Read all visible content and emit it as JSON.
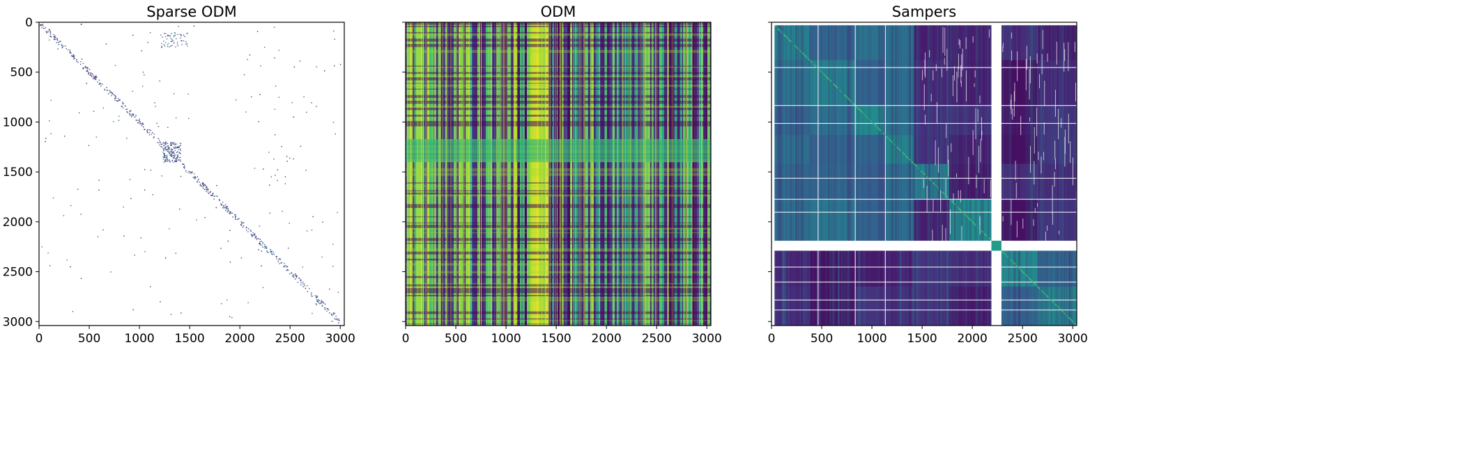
{
  "chart_data": [
    {
      "type": "heatmap",
      "title": "Sparse ODM",
      "xlim": [
        0,
        3040
      ],
      "ylim": [
        3040,
        0
      ],
      "xticks": [
        0,
        500,
        1000,
        1500,
        2000,
        2500,
        3000
      ],
      "yticks": [
        0,
        500,
        1000,
        1500,
        2000,
        2500,
        3000
      ],
      "xtick_labels": [
        "0",
        "500",
        "1000",
        "1500",
        "2000",
        "2500",
        "3000"
      ],
      "ytick_labels": [
        "0",
        "500",
        "1000",
        "1500",
        "2000",
        "2500",
        "3000"
      ],
      "background": "#ffffff",
      "pattern": "sparse-diagonal",
      "colormap": "viridis"
    },
    {
      "type": "heatmap",
      "title": "ODM",
      "xlim": [
        0,
        3040
      ],
      "ylim": [
        3040,
        0
      ],
      "xticks": [
        0,
        500,
        1000,
        1500,
        2000,
        2500,
        3000
      ],
      "yticks": [
        0,
        500,
        1000,
        1500,
        2000,
        2500,
        3000
      ],
      "xtick_labels": [
        "0",
        "500",
        "1000",
        "1500",
        "2000",
        "2500",
        "3000"
      ],
      "ytick_labels": [],
      "pattern": "dense-banded",
      "bright_block_cols": [
        1230,
        1420
      ],
      "bright_block_rows": [
        1170,
        1400
      ],
      "colormap": "viridis"
    },
    {
      "type": "heatmap",
      "title": "Sampers",
      "xlim": [
        0,
        3040
      ],
      "ylim": [
        3040,
        0
      ],
      "xticks": [
        0,
        500,
        1000,
        1500,
        2000,
        2500,
        3000
      ],
      "yticks": [
        0,
        500,
        1000,
        1500,
        2000,
        2500,
        3000
      ],
      "xtick_labels": [
        "0",
        "500",
        "1000",
        "1500",
        "2000",
        "2500",
        "3000"
      ],
      "ytick_labels": [],
      "pattern": "block-diagonal",
      "missing_band": [
        2190,
        2290
      ],
      "block_boundaries": [
        0,
        380,
        830,
        1130,
        1420,
        1770,
        2190,
        2290,
        2650,
        3040
      ],
      "colormap": "viridis"
    }
  ]
}
